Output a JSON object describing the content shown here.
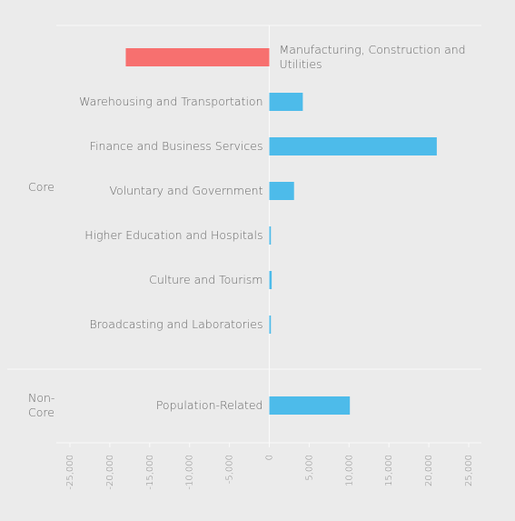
{
  "chart_data": {
    "type": "bar",
    "orientation": "horizontal",
    "groups": [
      {
        "name": "Core",
        "categories": [
          "Manufacturing, Construction and Utilities",
          "Warehousing and Transportation",
          "Finance and Business Services",
          "Voluntary and Government",
          "Higher Education and Hospitals",
          "Culture and Tourism",
          "Broadcasting and Laboratories"
        ],
        "values": [
          -18000,
          4200,
          21000,
          3100,
          200,
          300,
          200
        ]
      },
      {
        "name": "Non-Core",
        "categories": [
          "Population-Related"
        ],
        "values": [
          10100
        ]
      }
    ],
    "positive_color": "#4dbbea",
    "negative_color": "#f7706f",
    "xlim": [
      -25000,
      25000
    ],
    "xticks": [
      {
        "value": -25000,
        "label": "-25,000"
      },
      {
        "value": -20000,
        "label": "-20,000"
      },
      {
        "value": -15000,
        "label": "-15,000"
      },
      {
        "value": -10000,
        "label": "-10,000"
      },
      {
        "value": -5000,
        "label": "-5,000"
      },
      0,
      {
        "value": 5000,
        "label": "5,000"
      },
      {
        "value": 10000,
        "label": "10,000"
      },
      {
        "value": 15000,
        "label": "15,000"
      },
      {
        "value": 20000,
        "label": "20,000"
      },
      {
        "value": 25000,
        "label": "25,000"
      }
    ]
  }
}
